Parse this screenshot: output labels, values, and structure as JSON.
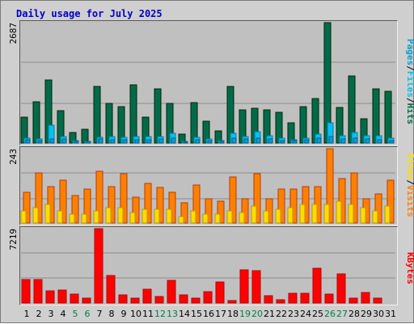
{
  "title": "Daily usage for July 2025",
  "colors": {
    "hits": "#006b4a",
    "files": "#00c2f0",
    "pages": "#00a0d0",
    "visits": "#ff8000",
    "sites": "#ffdc00",
    "kbytes": "#ff0000",
    "weekday_label": "#000000",
    "weekend_label": "#008040",
    "legend_sep": "#000000"
  },
  "chart_data": [
    {
      "type": "bar",
      "max_label": "2687",
      "ylim": [
        0,
        2687
      ],
      "legend": [
        "Pages",
        "Files",
        "Hits"
      ],
      "categories": [
        "1",
        "2",
        "3",
        "4",
        "5",
        "6",
        "7",
        "8",
        "9",
        "10",
        "11",
        "12",
        "13",
        "14",
        "15",
        "16",
        "17",
        "18",
        "19",
        "20",
        "21",
        "22",
        "23",
        "24",
        "25",
        "26",
        "27",
        "28",
        "29",
        "30",
        "31"
      ],
      "series": [
        {
          "name": "Hits",
          "values": [
            580,
            920,
            1400,
            720,
            230,
            300,
            1270,
            880,
            820,
            1290,
            570,
            1210,
            880,
            190,
            900,
            490,
            270,
            1270,
            740,
            780,
            740,
            680,
            450,
            810,
            1000,
            2687,
            800,
            1500,
            540,
            1200,
            1160
          ]
        },
        {
          "name": "Files",
          "values": [
            100,
            90,
            390,
            140,
            50,
            40,
            130,
            150,
            130,
            140,
            150,
            150,
            220,
            40,
            130,
            90,
            60,
            220,
            150,
            250,
            170,
            100,
            80,
            110,
            190,
            450,
            170,
            230,
            170,
            160,
            100
          ]
        },
        {
          "name": "Pages",
          "values": [
            70,
            60,
            90,
            90,
            30,
            30,
            90,
            80,
            80,
            80,
            80,
            90,
            110,
            20,
            80,
            50,
            40,
            110,
            90,
            110,
            90,
            60,
            60,
            80,
            100,
            150,
            90,
            100,
            90,
            80,
            60
          ]
        }
      ]
    },
    {
      "type": "bar",
      "max_label": "243",
      "ylim": [
        0,
        243
      ],
      "legend": [
        "Sites",
        "Visits"
      ],
      "categories": [
        "1",
        "2",
        "3",
        "4",
        "5",
        "6",
        "7",
        "8",
        "9",
        "10",
        "11",
        "12",
        "13",
        "14",
        "15",
        "16",
        "17",
        "18",
        "19",
        "20",
        "21",
        "22",
        "23",
        "24",
        "25",
        "26",
        "27",
        "28",
        "29",
        "30",
        "31"
      ],
      "series": [
        {
          "name": "Visits",
          "values": [
            100,
            165,
            120,
            140,
            90,
            110,
            170,
            120,
            160,
            85,
            130,
            115,
            100,
            65,
            125,
            80,
            70,
            150,
            80,
            160,
            80,
            110,
            110,
            120,
            120,
            243,
            145,
            165,
            80,
            95,
            140
          ]
        },
        {
          "name": "Sites",
          "values": [
            40,
            50,
            60,
            40,
            30,
            30,
            40,
            50,
            50,
            35,
            45,
            45,
            45,
            20,
            40,
            30,
            30,
            40,
            35,
            55,
            40,
            45,
            50,
            60,
            60,
            60,
            70,
            60,
            50,
            40,
            55
          ]
        }
      ]
    },
    {
      "type": "bar",
      "max_label": "7219",
      "ylim": [
        0,
        7219
      ],
      "legend": [
        "KBytes"
      ],
      "categories": [
        "1",
        "2",
        "3",
        "4",
        "5",
        "6",
        "7",
        "8",
        "9",
        "10",
        "11",
        "12",
        "13",
        "14",
        "15",
        "16",
        "17",
        "18",
        "19",
        "20",
        "21",
        "22",
        "23",
        "24",
        "25",
        "26",
        "27",
        "28",
        "29",
        "30",
        "31"
      ],
      "series": [
        {
          "name": "KBytes",
          "values": [
            2300,
            2250,
            1200,
            1250,
            850,
            450,
            7219,
            2700,
            750,
            500,
            1300,
            600,
            2200,
            750,
            450,
            1100,
            2050,
            250,
            3250,
            3150,
            700,
            350,
            950,
            950,
            3400,
            900,
            2850,
            500,
            1050,
            500,
            0
          ]
        }
      ]
    }
  ]
}
